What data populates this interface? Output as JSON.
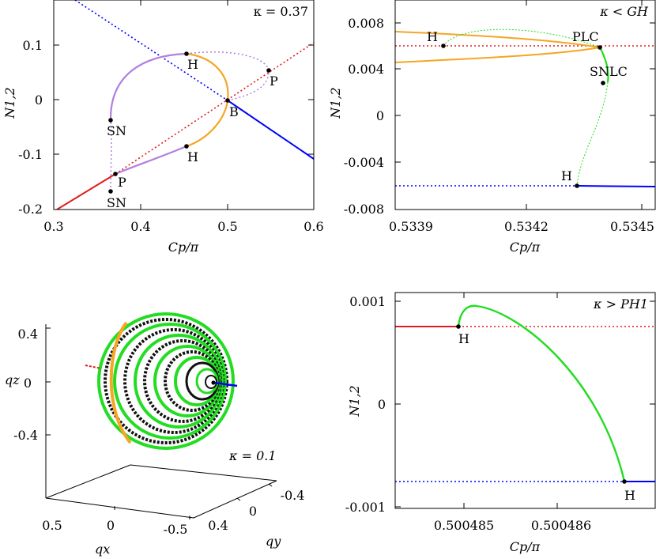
{
  "chart_data": [
    {
      "type": "line",
      "panel": "top-left",
      "annotation": "κ = 0.37",
      "xlabel": "Cp/π",
      "ylabel": "N1,2",
      "xlim": [
        0.3,
        0.6
      ],
      "ylim": [
        -0.2,
        0.17
      ],
      "xticks": [
        "0.3",
        "0.4",
        "0.5",
        "0.6"
      ],
      "yticks": [
        "-0.2",
        "-0.1",
        "0",
        "0.1"
      ],
      "colors": {
        "red": "#e31a1c",
        "blue": "#0000ff",
        "orange": "#f5a623",
        "purple": "#b07fe0"
      },
      "points": [
        {
          "label": "H",
          "x": 0.453,
          "y": 0.084
        },
        {
          "label": "H",
          "x": 0.453,
          "y": -0.084
        },
        {
          "label": "B",
          "x": 0.5,
          "y": 0.0
        },
        {
          "label": "P",
          "x": 0.547,
          "y": 0.054
        },
        {
          "label": "P",
          "x": 0.37,
          "y": -0.136
        },
        {
          "label": "SN",
          "x": 0.365,
          "y": -0.037
        },
        {
          "label": "SN",
          "x": 0.365,
          "y": -0.166
        }
      ]
    },
    {
      "type": "line",
      "panel": "top-right",
      "annotation": "κ < GH",
      "xlabel": "Cp/π",
      "ylabel": "N1,2",
      "xlim": [
        0.5339,
        0.53458
      ],
      "ylim": [
        -0.008,
        0.0096
      ],
      "xticks": [
        "0.5339",
        "0.5342",
        "0.5345"
      ],
      "yticks": [
        "-0.008",
        "-0.004",
        "0",
        "0.004",
        "0.008"
      ],
      "points": [
        {
          "label": "H",
          "x": 0.534,
          "y": 0.006
        },
        {
          "label": "PLC",
          "x": 0.53444,
          "y": 0.0059
        },
        {
          "label": "SNLC",
          "x": 0.53451,
          "y": 0.0028
        },
        {
          "label": "H",
          "x": 0.53437,
          "y": -0.0062
        }
      ]
    },
    {
      "type": "scatter",
      "panel": "bottom-left",
      "annotation": "κ = 0.1",
      "xlabel": "qx",
      "ylabel_y": "qy",
      "zlabel": "qz",
      "qx_ticks": [
        "0.5",
        "0",
        "-0.5"
      ],
      "qy_ticks": [
        "0.4",
        "0",
        "-0.4"
      ],
      "qz_ticks": [
        "0.4",
        "0",
        "-0.4"
      ]
    },
    {
      "type": "line",
      "panel": "bottom-right",
      "annotation": "κ > PH1",
      "xlabel": "Cp/π",
      "ylabel": "N1,2",
      "xlim": [
        0.50048428,
        0.50048705
      ],
      "ylim": [
        -0.001,
        0.00105
      ],
      "xticks": [
        "0.500485",
        "0.500486"
      ],
      "yticks": [
        "0.001",
        "0",
        "-0.001"
      ],
      "points": [
        {
          "label": "H",
          "x": 0.50048493,
          "y": 0.00073
        },
        {
          "label": "H",
          "x": 0.50048655,
          "y": -0.00075
        }
      ]
    }
  ]
}
